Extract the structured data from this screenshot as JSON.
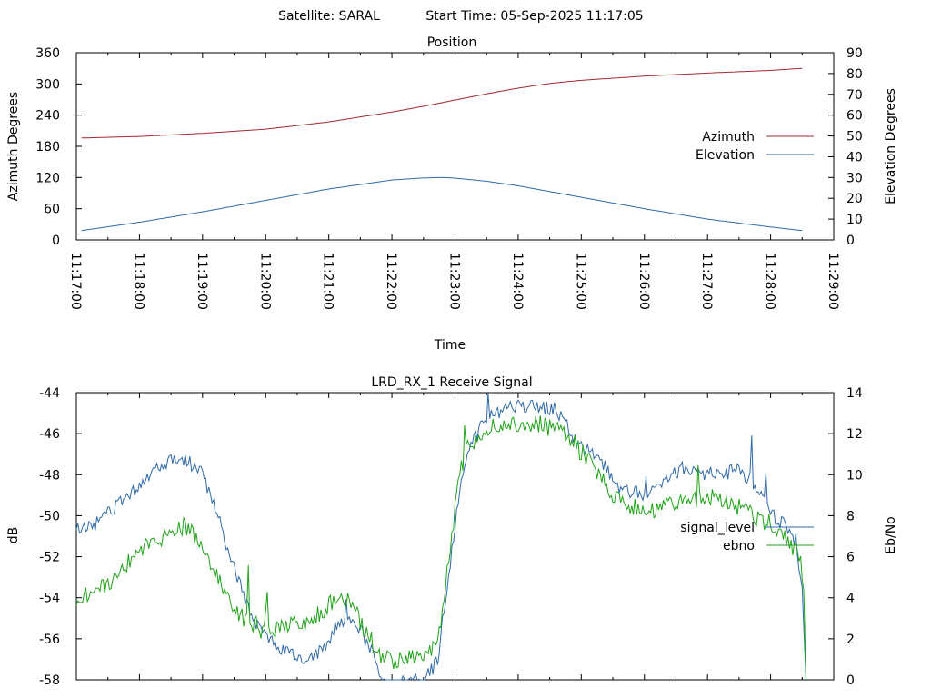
{
  "header": {
    "satellite_label": "Satellite: SARAL",
    "start_time_label": "Start Time: 05-Sep-2025 11:17:05"
  },
  "chart_data": [
    {
      "type": "line",
      "title": "Position",
      "xlabel": "Time",
      "ylabel": "Azimuth Degrees",
      "y2label": "Elevation Degrees",
      "xticks": [
        "11:17:00",
        "11:18:00",
        "11:19:00",
        "11:20:00",
        "11:21:00",
        "11:22:00",
        "11:23:00",
        "11:24:00",
        "11:25:00",
        "11:26:00",
        "11:27:00",
        "11:28:00",
        "11:29:00"
      ],
      "yticks": [
        "0",
        "60",
        "120",
        "180",
        "240",
        "300",
        "360"
      ],
      "y2ticks": [
        "0",
        "10",
        "20",
        "30",
        "40",
        "50",
        "60",
        "70",
        "80",
        "90"
      ],
      "ylim": [
        0,
        360
      ],
      "y2lim": [
        0,
        90
      ],
      "xlim_minutes": [
        0,
        12
      ],
      "legend_position": "right",
      "series": [
        {
          "name": "Azimuth",
          "axis": "left",
          "color": "#a0282e",
          "x": [
            0.08,
            1,
            2,
            3,
            4,
            5,
            5.5,
            6,
            6.5,
            7,
            7.5,
            8,
            9,
            10,
            11,
            11.5
          ],
          "y": [
            196,
            199,
            205,
            213,
            227,
            246,
            257,
            269,
            281,
            292,
            301,
            307,
            315,
            321,
            326,
            330
          ]
        },
        {
          "name": "Elevation",
          "axis": "right",
          "color": "#2e6aa8",
          "x": [
            0.08,
            1,
            2,
            3,
            4,
            5,
            5.5,
            5.8,
            6,
            6.5,
            7,
            8,
            9,
            10,
            11,
            11.5
          ],
          "y": [
            4.5,
            8.5,
            13.5,
            19,
            24.5,
            28.8,
            29.8,
            30,
            29.7,
            28.2,
            26,
            20.5,
            15,
            10,
            6.2,
            4.5
          ]
        }
      ]
    },
    {
      "type": "line",
      "title": "LRD_RX_1 Receive Signal",
      "ylabel": "dB",
      "y2label": "Eb/No",
      "yticks": [
        "-58",
        "-56",
        "-54",
        "-52",
        "-50",
        "-48",
        "-46",
        "-44"
      ],
      "y2ticks": [
        "0",
        "2",
        "4",
        "6",
        "8",
        "10",
        "12",
        "14"
      ],
      "ylim": [
        -58,
        -44
      ],
      "y2lim": [
        0,
        14
      ],
      "xlim_minutes": [
        0,
        12
      ],
      "legend_position": "right",
      "series": [
        {
          "name": "signal_level",
          "axis": "left",
          "color": "#2e6aa8",
          "x": [
            0,
            0.3,
            0.6,
            1.0,
            1.3,
            1.6,
            1.8,
            2.0,
            2.2,
            2.4,
            2.6,
            2.8,
            3.0,
            3.3,
            3.6,
            3.9,
            4.1,
            4.3,
            4.5,
            4.7,
            4.8,
            4.9,
            5.2,
            5.5,
            5.75,
            5.8,
            5.9,
            6.0,
            6.1,
            6.2,
            6.3,
            6.5,
            6.7,
            7.0,
            7.3,
            7.6,
            7.8,
            8.0,
            8.3,
            8.6,
            9.0,
            9.3,
            9.6,
            9.9,
            10.2,
            10.5,
            10.8,
            11.0,
            11.2,
            11.4,
            11.5,
            11.56
          ],
          "y": [
            -50.6,
            -50.4,
            -49.6,
            -48.5,
            -47.6,
            -47.2,
            -47.4,
            -48.0,
            -49.5,
            -51.6,
            -53.4,
            -55.0,
            -55.9,
            -56.6,
            -57.1,
            -56.5,
            -55.5,
            -54.8,
            -55.6,
            -56.7,
            -58.0,
            -58.3,
            -58.1,
            -58.0,
            -57.0,
            -55.2,
            -53.0,
            -50.5,
            -48.3,
            -47.0,
            -46.2,
            -45.3,
            -44.9,
            -44.6,
            -44.7,
            -44.8,
            -45.8,
            -46.6,
            -47.3,
            -48.7,
            -49.0,
            -48.4,
            -47.7,
            -47.9,
            -48.0,
            -47.7,
            -48.6,
            -49.9,
            -50.4,
            -51.2,
            -53.5,
            -58.0
          ]
        },
        {
          "name": "ebno",
          "axis": "right",
          "color": "#1fa318",
          "x": [
            0,
            0.3,
            0.6,
            1.0,
            1.3,
            1.5,
            1.7,
            1.9,
            2.1,
            2.3,
            2.5,
            2.7,
            2.9,
            3.1,
            3.4,
            3.7,
            4.0,
            4.2,
            4.4,
            4.6,
            4.8,
            5.0,
            5.2,
            5.4,
            5.6,
            5.75,
            5.85,
            5.95,
            6.05,
            6.15,
            6.3,
            6.5,
            6.7,
            7.0,
            7.3,
            7.6,
            7.9,
            8.2,
            8.5,
            8.8,
            9.1,
            9.4,
            9.7,
            10.0,
            10.3,
            10.6,
            10.9,
            11.1,
            11.3,
            11.45,
            11.52,
            11.56
          ],
          "y": [
            4.0,
            4.3,
            5.0,
            6.2,
            6.9,
            7.3,
            7.5,
            7.0,
            5.8,
            4.5,
            3.5,
            2.8,
            2.6,
            2.5,
            2.6,
            2.8,
            3.6,
            4.1,
            3.5,
            2.2,
            1.2,
            0.9,
            1.0,
            1.1,
            1.3,
            2.2,
            4.5,
            7.2,
            9.5,
            11.0,
            11.7,
            12.2,
            12.4,
            12.4,
            12.5,
            12.2,
            11.5,
            10.3,
            9.1,
            8.5,
            8.3,
            8.5,
            8.7,
            9.0,
            8.7,
            8.3,
            7.6,
            7.2,
            6.7,
            6.0,
            5.0,
            0.0
          ]
        }
      ]
    }
  ]
}
